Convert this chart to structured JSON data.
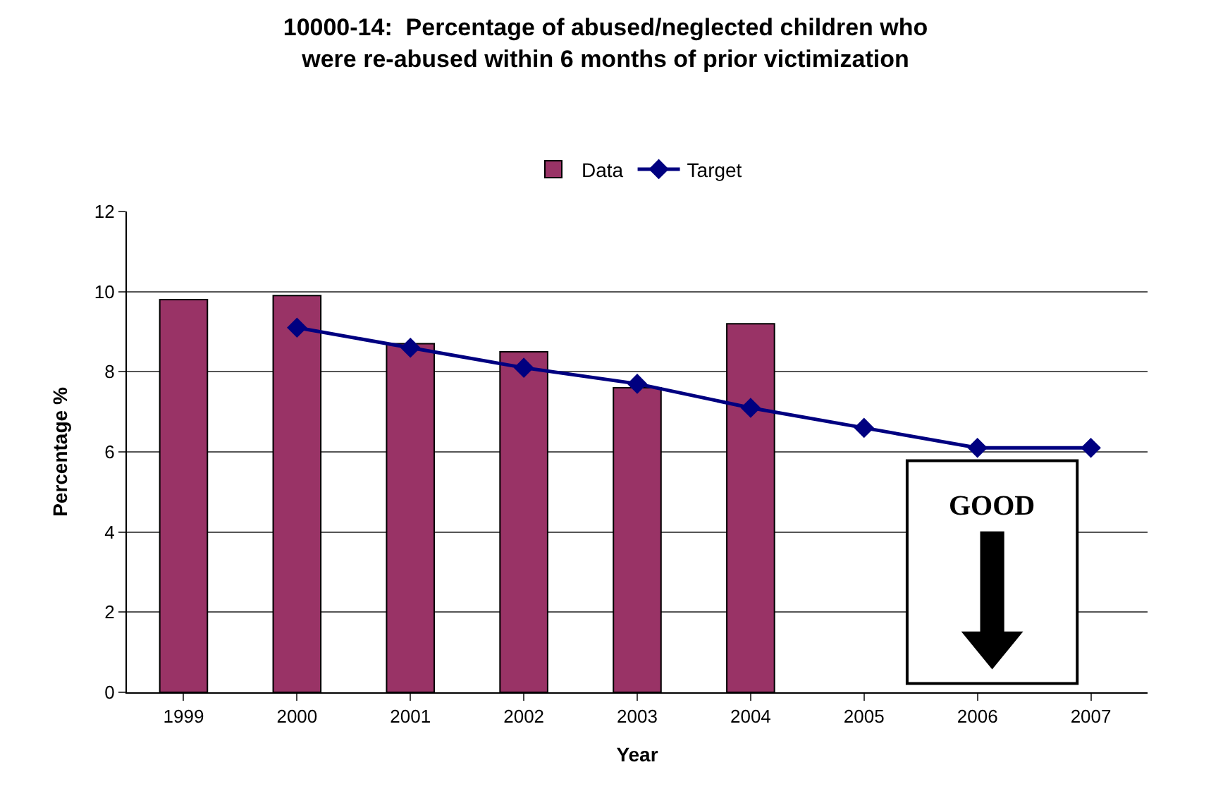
{
  "chart_data": {
    "type": "bar",
    "title": "10000-14:  Percentage of abused/neglected children who\nwere re-abused within 6 months of prior victimization",
    "xlabel": "Year",
    "ylabel": "Percentage %",
    "categories": [
      "1999",
      "2000",
      "2001",
      "2002",
      "2003",
      "2004",
      "2005",
      "2006",
      "2007"
    ],
    "series": [
      {
        "name": "Data",
        "color": "#993366",
        "values": [
          9.8,
          9.9,
          8.7,
          8.5,
          7.6,
          9.2,
          null,
          null,
          null
        ]
      },
      {
        "name": "Target",
        "type": "line",
        "color": "#000080",
        "values": [
          null,
          9.1,
          8.6,
          8.1,
          7.7,
          7.1,
          6.6,
          6.1,
          6.1
        ]
      }
    ],
    "ylim": [
      0,
      12
    ],
    "yticks": [
      0,
      2,
      4,
      6,
      8,
      10,
      12
    ],
    "grid": "y",
    "legend": "top",
    "marker": "diamond",
    "line_style": "solid",
    "annotations": [
      "GOOD"
    ]
  }
}
